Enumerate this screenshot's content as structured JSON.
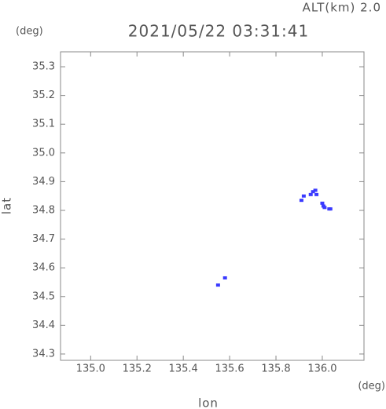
{
  "chart_data": {
    "type": "scatter",
    "title": "2021/05/22 03:31:41",
    "annotation": "ALT(km) 2.0",
    "y_unit": "(deg)",
    "x_unit": "(deg)",
    "xlabel": "lon",
    "ylabel": "lat",
    "color": "#3a3aff",
    "xlim": [
      134.87,
      136.18
    ],
    "ylim": [
      34.278,
      35.352
    ],
    "xticks": [
      {
        "value": 135,
        "label": "135.0"
      },
      135.2,
      135.4,
      135.6,
      135.8,
      {
        "value": 136,
        "label": "136.0"
      }
    ],
    "yticks": [
      34.3,
      34.4,
      34.5,
      34.6,
      34.7,
      34.8,
      34.9,
      {
        "value": 35,
        "label": "35.0"
      },
      35.1,
      35.2,
      35.3
    ],
    "x": [
      135.55,
      135.58,
      135.92,
      135.91,
      135.95,
      135.96,
      135.97,
      135.975,
      136.0,
      136.005,
      136.01,
      136.03,
      136.035
    ],
    "values": [
      34.54,
      34.565,
      34.85,
      34.835,
      34.855,
      34.865,
      34.87,
      34.855,
      34.825,
      34.815,
      34.81,
      34.805,
      34.805
    ]
  }
}
